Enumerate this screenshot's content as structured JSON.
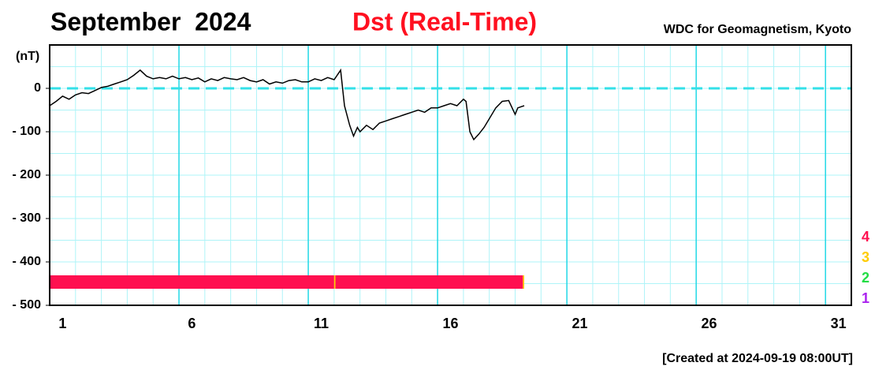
{
  "chart_data": {
    "type": "line",
    "title": "September  2024",
    "subtitle": "Dst (Real-Time)",
    "source": "WDC for Geomagnetism, Kyoto",
    "footer": "[Created at 2024-09-19 08:00UT]",
    "y_label": "(nT)",
    "xlim": [
      1,
      32
    ],
    "xticks": [
      1,
      6,
      11,
      16,
      21,
      26,
      31
    ],
    "ylim": [
      -500,
      100
    ],
    "yticks": [
      {
        "value": 0,
        "label": "0"
      },
      {
        "value": -100,
        "label": "- 100"
      },
      {
        "value": -200,
        "label": "- 200"
      },
      {
        "value": -300,
        "label": "- 300"
      },
      {
        "value": -400,
        "label": "- 400"
      },
      {
        "value": -500,
        "label": "- 500"
      }
    ],
    "grid": true,
    "zero_line_color": "#33e0e8",
    "x": [
      1,
      1.25,
      1.5,
      1.75,
      2,
      2.25,
      2.5,
      2.75,
      3,
      3.25,
      3.5,
      3.75,
      4,
      4.25,
      4.5,
      4.75,
      5,
      5.25,
      5.5,
      5.75,
      6,
      6.25,
      6.5,
      6.75,
      7,
      7.25,
      7.5,
      7.75,
      8,
      8.25,
      8.5,
      8.75,
      9,
      9.25,
      9.5,
      9.75,
      10,
      10.25,
      10.5,
      10.75,
      11,
      11.25,
      11.5,
      11.75,
      12,
      12.25,
      12.4,
      12.6,
      12.75,
      12.9,
      13,
      13.25,
      13.5,
      13.75,
      14,
      14.25,
      14.5,
      14.75,
      15,
      15.25,
      15.5,
      15.75,
      16,
      16.25,
      16.5,
      16.75,
      17,
      17.1,
      17.25,
      17.4,
      17.6,
      17.8,
      18,
      18.25,
      18.5,
      18.75,
      19,
      19.1,
      19.25,
      19.35
    ],
    "series": [
      {
        "color": "#000000",
        "values": [
          -40,
          -30,
          -18,
          -25,
          -15,
          -10,
          -12,
          -5,
          2,
          5,
          10,
          15,
          20,
          30,
          42,
          28,
          22,
          25,
          22,
          28,
          22,
          25,
          20,
          24,
          15,
          22,
          18,
          25,
          22,
          20,
          25,
          18,
          15,
          20,
          10,
          15,
          12,
          18,
          20,
          15,
          15,
          22,
          18,
          25,
          20,
          42,
          -40,
          -85,
          -110,
          -90,
          -100,
          -85,
          -95,
          -80,
          -75,
          -70,
          -65,
          -60,
          -55,
          -50,
          -55,
          -45,
          -45,
          -40,
          -35,
          -40,
          -25,
          -30,
          -100,
          -118,
          -105,
          -90,
          -70,
          -45,
          -30,
          -28,
          -60,
          -45,
          -42,
          -40
        ]
      }
    ],
    "quality_segments": [
      {
        "x0": 1,
        "x1": 12,
        "level": 4
      },
      {
        "x0": 12,
        "x1": 12.05,
        "level": 3
      },
      {
        "x0": 12.05,
        "x1": 19.3,
        "level": 4
      },
      {
        "x0": 19.3,
        "x1": 19.35,
        "level": 3
      }
    ],
    "levels": [
      {
        "label": "4",
        "level": 4,
        "color": "#ff1050"
      },
      {
        "label": "3",
        "level": 3,
        "color": "#ffcc00"
      },
      {
        "label": "2",
        "level": 2,
        "color": "#22dd44"
      },
      {
        "label": "1",
        "level": 1,
        "color": "#aa22ee"
      }
    ]
  }
}
